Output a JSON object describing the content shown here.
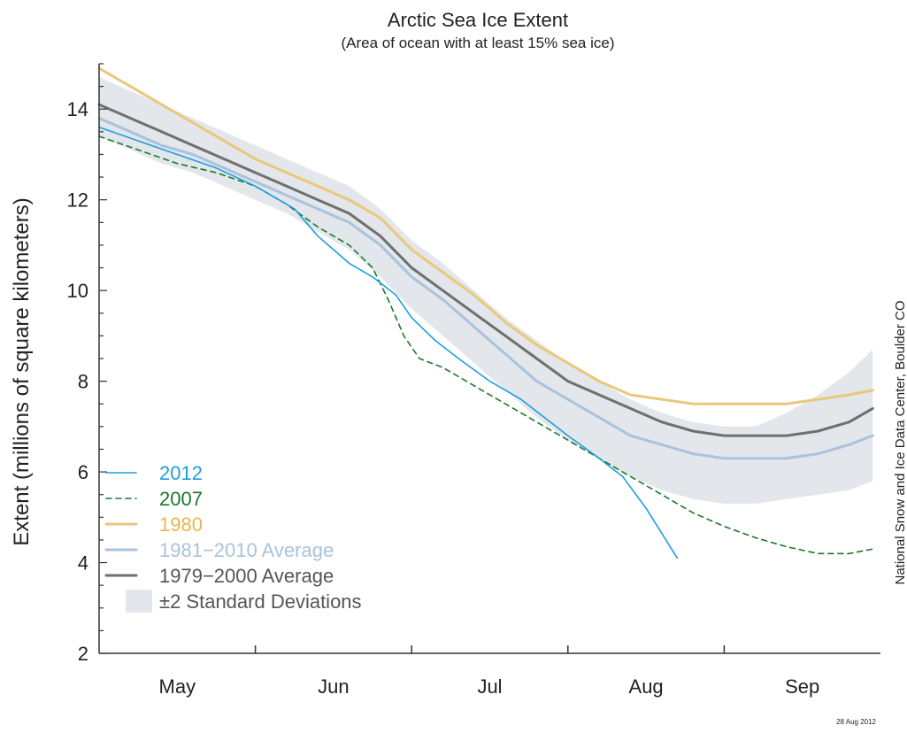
{
  "chart_data": {
    "type": "line",
    "title": "Arctic Sea Ice Extent",
    "subtitle": "(Area of ocean with at least 15% sea ice)",
    "xlabel": "",
    "ylabel": "Extent (millions of square kilometers)",
    "ylim": [
      2,
      15
    ],
    "yticks": [
      2,
      4,
      6,
      8,
      10,
      12,
      14
    ],
    "xlim": [
      0,
      5
    ],
    "month_labels": [
      "May",
      "Jun",
      "Jul",
      "Aug",
      "Sep"
    ],
    "grid": false,
    "legend_position": "lower-left",
    "credit": "National Snow and Ice Data Center, Boulder CO",
    "date_stamp": "28 Aug 2012",
    "band": {
      "name": "±2 Standard Deviations",
      "color": "#e3e6ea",
      "x": [
        0,
        0.2,
        0.4,
        0.6,
        0.8,
        1.0,
        1.2,
        1.4,
        1.6,
        1.8,
        2.0,
        2.2,
        2.4,
        2.6,
        2.8,
        3.0,
        3.2,
        3.4,
        3.6,
        3.8,
        4.0,
        4.2,
        4.4,
        4.6,
        4.8,
        4.95
      ],
      "upper": [
        14.7,
        14.4,
        14.1,
        13.8,
        13.5,
        13.2,
        12.9,
        12.6,
        12.3,
        11.8,
        11.1,
        10.6,
        10.0,
        9.4,
        8.9,
        8.4,
        8.0,
        7.6,
        7.3,
        7.1,
        7.0,
        7.0,
        7.3,
        7.7,
        8.2,
        8.7
      ],
      "lower": [
        13.4,
        13.1,
        12.8,
        12.6,
        12.3,
        12.0,
        11.7,
        11.3,
        10.9,
        10.3,
        9.6,
        9.0,
        8.4,
        7.8,
        7.2,
        6.7,
        6.3,
        5.9,
        5.6,
        5.4,
        5.3,
        5.3,
        5.4,
        5.5,
        5.6,
        5.8
      ]
    },
    "series": [
      {
        "name": "2012",
        "color": "#1f9de0",
        "dash": "none",
        "width": 1.6,
        "x": [
          0,
          0.25,
          0.5,
          0.75,
          1.0,
          1.1,
          1.25,
          1.3,
          1.4,
          1.5,
          1.6,
          1.75,
          1.9,
          2.0,
          2.15,
          2.3,
          2.5,
          2.7,
          2.85,
          3.0,
          3.2,
          3.35,
          3.5,
          3.7
        ],
        "values": [
          13.6,
          13.3,
          13.0,
          12.7,
          12.3,
          12.1,
          11.8,
          11.6,
          11.2,
          10.9,
          10.6,
          10.3,
          9.9,
          9.4,
          8.9,
          8.5,
          8.0,
          7.6,
          7.2,
          6.8,
          6.3,
          5.9,
          5.2,
          4.1
        ]
      },
      {
        "name": "2007",
        "color": "#1a7a2a",
        "dash": "6,5",
        "width": 1.6,
        "x": [
          0,
          0.25,
          0.5,
          0.75,
          1.0,
          1.2,
          1.4,
          1.6,
          1.75,
          1.85,
          1.95,
          2.05,
          2.2,
          2.4,
          2.6,
          2.8,
          3.0,
          3.2,
          3.4,
          3.6,
          3.8,
          4.0,
          4.2,
          4.4,
          4.6,
          4.8,
          4.95
        ],
        "values": [
          13.4,
          13.1,
          12.8,
          12.6,
          12.3,
          11.9,
          11.4,
          11.0,
          10.5,
          9.8,
          9.0,
          8.5,
          8.3,
          7.9,
          7.5,
          7.1,
          6.7,
          6.3,
          5.9,
          5.5,
          5.1,
          4.8,
          4.55,
          4.35,
          4.2,
          4.2,
          4.3
        ]
      },
      {
        "name": "1980",
        "color": "#e9c87a",
        "dash": "none",
        "width": 3,
        "x": [
          0,
          0.2,
          0.4,
          0.6,
          0.8,
          1.0,
          1.2,
          1.4,
          1.6,
          1.8,
          2.0,
          2.2,
          2.4,
          2.6,
          2.8,
          3.0,
          3.2,
          3.4,
          3.6,
          3.8,
          4.0,
          4.2,
          4.4,
          4.6,
          4.8,
          4.95
        ],
        "values": [
          14.9,
          14.5,
          14.1,
          13.7,
          13.3,
          12.9,
          12.6,
          12.3,
          12.0,
          11.6,
          10.9,
          10.4,
          9.9,
          9.3,
          8.8,
          8.4,
          8.0,
          7.7,
          7.6,
          7.5,
          7.5,
          7.5,
          7.5,
          7.6,
          7.7,
          7.8
        ]
      },
      {
        "name": "1981−2010 Average",
        "color": "#a9c3dc",
        "dash": "none",
        "width": 3,
        "x": [
          0,
          0.2,
          0.4,
          0.6,
          0.8,
          1.0,
          1.2,
          1.4,
          1.6,
          1.8,
          2.0,
          2.2,
          2.4,
          2.6,
          2.8,
          3.0,
          3.2,
          3.4,
          3.6,
          3.8,
          4.0,
          4.2,
          4.4,
          4.6,
          4.8,
          4.95
        ],
        "values": [
          13.8,
          13.5,
          13.2,
          13.0,
          12.7,
          12.4,
          12.1,
          11.8,
          11.5,
          11.0,
          10.3,
          9.8,
          9.2,
          8.6,
          8.0,
          7.6,
          7.2,
          6.8,
          6.6,
          6.4,
          6.3,
          6.3,
          6.3,
          6.4,
          6.6,
          6.8
        ]
      },
      {
        "name": "1979−2000 Average",
        "color": "#6f6f6f",
        "dash": "none",
        "width": 3,
        "x": [
          0,
          0.2,
          0.4,
          0.6,
          0.8,
          1.0,
          1.2,
          1.4,
          1.6,
          1.8,
          2.0,
          2.2,
          2.4,
          2.6,
          2.8,
          3.0,
          3.2,
          3.4,
          3.6,
          3.8,
          4.0,
          4.2,
          4.4,
          4.6,
          4.8,
          4.95
        ],
        "values": [
          14.1,
          13.8,
          13.5,
          13.2,
          12.9,
          12.6,
          12.3,
          12.0,
          11.7,
          11.2,
          10.5,
          10.0,
          9.5,
          9.0,
          8.5,
          8.0,
          7.7,
          7.4,
          7.1,
          6.9,
          6.8,
          6.8,
          6.8,
          6.9,
          7.1,
          7.4
        ]
      }
    ]
  }
}
